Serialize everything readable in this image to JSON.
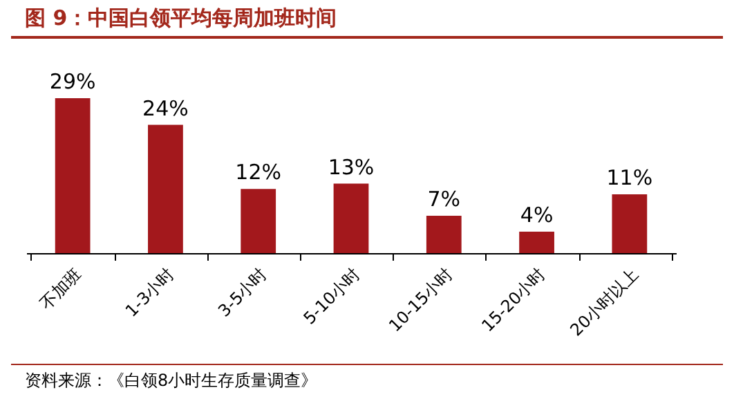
{
  "chart_data": {
    "type": "bar",
    "title": "图 9：中国白领平均每周加班时间",
    "categories": [
      "不加班",
      "1-3小时",
      "3-5小时",
      "5-10小时",
      "10-15小时",
      "15-20小时",
      "20小时以上"
    ],
    "values": [
      29,
      24,
      12,
      13,
      7,
      4,
      11
    ],
    "value_labels": [
      "29%",
      "24%",
      "12%",
      "13%",
      "7%",
      "4%",
      "11%"
    ],
    "color": "#a3181c",
    "annotations": [
      "资料来源：《白领8小时生存质量调查》"
    ]
  }
}
